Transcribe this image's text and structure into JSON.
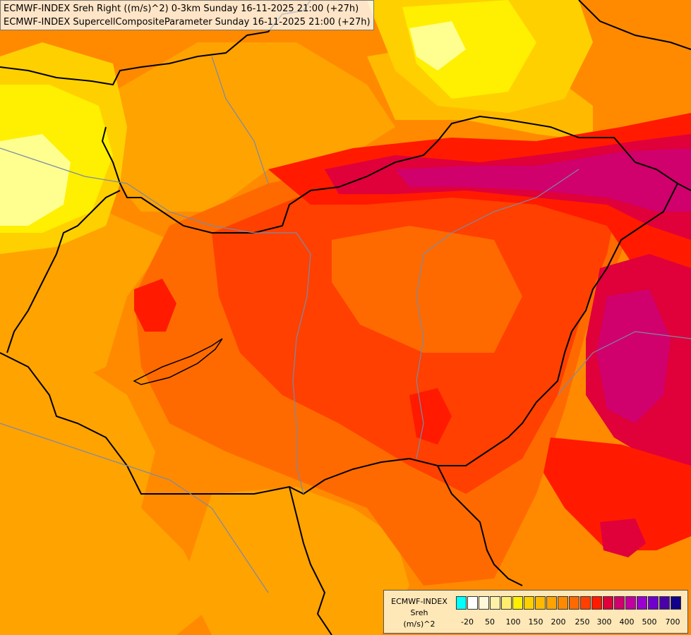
{
  "header": {
    "line1": "ECMWF-INDEX Sreh Right ((m/s)^2) 0-3km Sunday 16-11-2025 21:00 (+27h)",
    "line2": "ECMWF-INDEX SupercellCompositeParameter Sunday 16-11-2025 21:00 (+27h)"
  },
  "legend": {
    "title_line1": "ECMWF-INDEX",
    "title_line2": "Sreh",
    "title_line3": "(m/s)^2",
    "colors": [
      "#00ffff",
      "#ffffff",
      "#fff7d9",
      "#fff0a8",
      "#ffef6e",
      "#ffef00",
      "#ffd000",
      "#ffba00",
      "#ffa300",
      "#ff8a00",
      "#ff6a00",
      "#ff4000",
      "#ff1a00",
      "#e0003a",
      "#d0006c",
      "#c2009f",
      "#9a00d0",
      "#7000d0",
      "#4a00a8",
      "#10008a"
    ],
    "ticks": [
      "-20",
      "50",
      "100",
      "150",
      "200",
      "250",
      "300",
      "400",
      "500",
      "700"
    ]
  },
  "map": {
    "field_colors": {
      "yellow_light": "#ffffa0",
      "yellow": "#ffef00",
      "yellow_orange": "#ffd000",
      "orange_light": "#ffba00",
      "orange": "#ffa300",
      "orange_dark": "#ff8a00",
      "red_orange": "#ff6a00",
      "red_light": "#ff4000",
      "red": "#ff1a00",
      "crimson": "#e0003a",
      "magenta": "#d0006c"
    },
    "border_color": "#000000",
    "river_color": "#7a8aa8"
  }
}
